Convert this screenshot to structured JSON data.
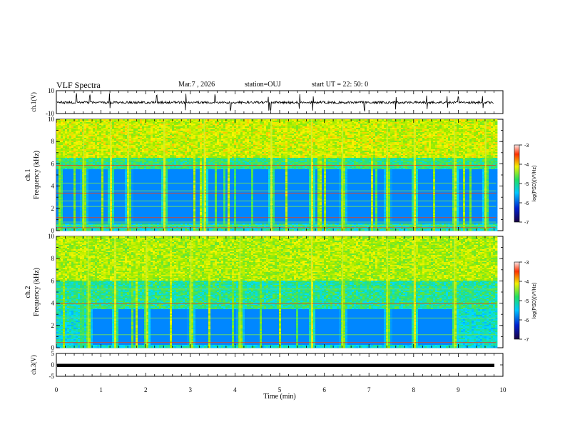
{
  "header": {
    "title": "VLF Spectra",
    "date": "Mar.7 , 2026",
    "station": "station=OUJ",
    "start": "start UT = 22: 50: 0"
  },
  "chart_data": [
    {
      "type": "line",
      "name": "waveform-ch1",
      "ylabel": "ch.1(V)",
      "ylim": [
        -10,
        10
      ],
      "yticks": [
        "10",
        "-10"
      ],
      "xlim": [
        0,
        10
      ],
      "baseline": 0,
      "spikes_min": [
        0.45,
        0.75,
        1.2,
        2.25,
        2.9,
        3.55,
        3.9,
        4.75,
        4.8,
        5.45,
        5.75,
        6.9,
        7.6,
        8.3,
        8.75,
        9.0,
        9.55
      ]
    },
    {
      "type": "heatmap",
      "name": "spectrogram-ch1",
      "ylabel_line1": "ch.1",
      "ylabel_line2": "Frequency (kHz)",
      "ylim": [
        0,
        10
      ],
      "yticks": [
        "0",
        "2",
        "4",
        "6",
        "8",
        "10"
      ],
      "xlim": [
        0,
        9.85
      ],
      "colorbar": {
        "label": "log(PSD)(V²/Hz)",
        "range": [
          -7,
          -3
        ],
        "ticks": [
          "-3",
          "-4",
          "-5",
          "-6",
          "-7"
        ]
      },
      "quiet_band_khz": [
        0.7,
        5.5
      ],
      "active_band_khz": [
        6,
        10
      ],
      "lines_khz": [
        0.3,
        0.5,
        0.8,
        1.2,
        2.2,
        2.7,
        3.4,
        3.6,
        4.3,
        5.9
      ],
      "bursts_min": [
        0.6,
        1.2,
        1.6,
        2.4,
        3.3,
        4.8,
        5.7,
        6.4,
        7.4,
        8.0,
        8.9,
        9.6
      ]
    },
    {
      "type": "heatmap",
      "name": "spectrogram-ch2",
      "ylabel_line1": "ch.2",
      "ylabel_line2": "Frequency (kHz)",
      "ylim": [
        0,
        10
      ],
      "yticks": [
        "0",
        "2",
        "4",
        "6",
        "8",
        "10"
      ],
      "xlim": [
        0,
        9.85
      ],
      "colorbar": {
        "label": "log(PSD)(V²/Hz)",
        "range": [
          -7,
          -3
        ],
        "ticks": [
          "-3",
          "-4",
          "-5",
          "-6",
          "-7"
        ]
      },
      "quiet_window_min": [
        0.65,
        9.0
      ],
      "quiet_band_khz": [
        0.3,
        3.5
      ],
      "lines_khz": [
        0.5,
        1.2,
        2.7,
        4.0,
        5.3
      ],
      "bursts_min": [
        0.7,
        1.3,
        2.0,
        3.0,
        4.1,
        5.7,
        6.4,
        7.4,
        8.0,
        8.9
      ]
    },
    {
      "type": "line",
      "name": "waveform-ch3",
      "ylabel": "ch.3(V)",
      "ylim": [
        -5,
        5
      ],
      "yticks": [
        "5",
        "0",
        "-5"
      ],
      "xlim": [
        0,
        10
      ],
      "level": -0.8
    }
  ],
  "xaxis": {
    "label": "Time (min)",
    "ticks": [
      "0",
      "1",
      "2",
      "3",
      "4",
      "5",
      "6",
      "7",
      "8",
      "9",
      "10"
    ]
  }
}
